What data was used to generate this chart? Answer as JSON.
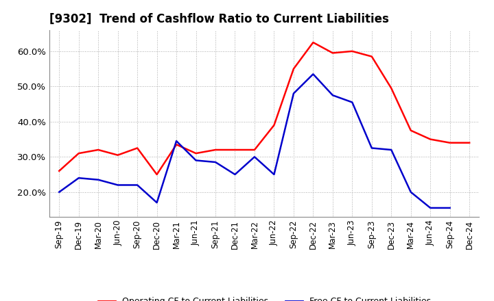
{
  "title": "[9302]  Trend of Cashflow Ratio to Current Liabilities",
  "x_labels": [
    "Sep-19",
    "Dec-19",
    "Mar-20",
    "Jun-20",
    "Sep-20",
    "Dec-20",
    "Mar-21",
    "Jun-21",
    "Sep-21",
    "Dec-21",
    "Mar-22",
    "Jun-22",
    "Sep-22",
    "Dec-22",
    "Mar-23",
    "Jun-23",
    "Sep-23",
    "Dec-23",
    "Mar-24",
    "Jun-24",
    "Sep-24",
    "Dec-24"
  ],
  "operating_cf": [
    26.0,
    31.0,
    32.0,
    30.5,
    32.5,
    25.0,
    33.5,
    31.0,
    32.0,
    32.0,
    32.0,
    39.0,
    55.0,
    62.5,
    59.5,
    60.0,
    58.5,
    49.5,
    37.5,
    35.0,
    34.0,
    34.0
  ],
  "free_cf": [
    20.0,
    24.0,
    23.5,
    22.0,
    22.0,
    17.0,
    34.5,
    29.0,
    28.5,
    25.0,
    30.0,
    25.0,
    48.0,
    53.5,
    47.5,
    45.5,
    32.5,
    32.0,
    20.0,
    15.5,
    15.5,
    null
  ],
  "operating_color": "#ff0000",
  "free_color": "#0000cc",
  "ylim_min": 13.0,
  "ylim_max": 66.0,
  "yticks": [
    20.0,
    30.0,
    40.0,
    50.0,
    60.0
  ],
  "legend_op": "Operating CF to Current Liabilities",
  "legend_free": "Free CF to Current Liabilities",
  "background_color": "#ffffff",
  "grid_color": "#aaaaaa",
  "title_fontsize": 12,
  "tick_label_fontsize": 8.5,
  "ytick_label_fontsize": 9.5
}
